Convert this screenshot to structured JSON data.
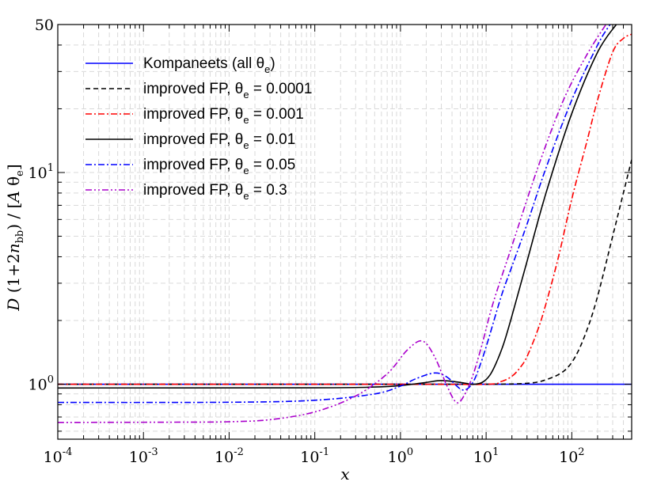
{
  "chart_data": {
    "type": "line",
    "xlabel": "x",
    "ylabel_parts": {
      "d": "D",
      "paren_open": " (1+2",
      "n": "n",
      "n_sub": "bb",
      "paren_close": ") / [",
      "a": "A",
      "theta": " θ",
      "theta_sub": "e",
      "bracket_close": "]"
    },
    "xscale": "log",
    "yscale": "log",
    "xlim": [
      0.0001,
      500
    ],
    "ylim": [
      0.55,
      50
    ],
    "grid": true,
    "legend_position": "upper-left",
    "x_ticks": [
      {
        "base": "10",
        "exp": "-4",
        "value": 0.0001
      },
      {
        "base": "10",
        "exp": "-3",
        "value": 0.001
      },
      {
        "base": "10",
        "exp": "-2",
        "value": 0.01
      },
      {
        "base": "10",
        "exp": "-1",
        "value": 0.1
      },
      {
        "base": "10",
        "exp": "0",
        "value": 1
      },
      {
        "base": "10",
        "exp": "1",
        "value": 10
      },
      {
        "base": "10",
        "exp": "2",
        "value": 100
      }
    ],
    "y_ticks": [
      {
        "base": "10",
        "exp": "0",
        "value": 1
      },
      {
        "base": "10",
        "exp": "1",
        "value": 10
      },
      {
        "base": "50",
        "exp": "",
        "value": 50
      }
    ],
    "series": [
      {
        "name_main": "Kompaneets (all θ",
        "name_sub": "e",
        "name_rest": ")",
        "color": "#0000ff",
        "dash": "",
        "points": [
          [
            0.0001,
            1.0
          ],
          [
            0.01,
            1.0
          ],
          [
            1,
            1.0
          ],
          [
            10,
            1.0
          ],
          [
            100,
            1.0
          ],
          [
            500,
            1.0
          ]
        ]
      },
      {
        "name_main": "improved FP, θ",
        "name_sub": "e",
        "name_rest": " = 0.0001",
        "color": "#000000",
        "dash": "6,4",
        "points": [
          [
            0.0001,
            1.0
          ],
          [
            1,
            1.0
          ],
          [
            10,
            1.0
          ],
          [
            30,
            1.01
          ],
          [
            50,
            1.05
          ],
          [
            80,
            1.15
          ],
          [
            110,
            1.35
          ],
          [
            150,
            1.8
          ],
          [
            200,
            2.6
          ],
          [
            300,
            5.0
          ],
          [
            400,
            8.0
          ],
          [
            500,
            11.5
          ]
        ]
      },
      {
        "name_main": "improved FP, θ",
        "name_sub": "e",
        "name_rest": " = 0.001",
        "color": "#ff0000",
        "dash": "8,3,2,3",
        "points": [
          [
            0.0001,
            1.0
          ],
          [
            1,
            1.0
          ],
          [
            10,
            1.0
          ],
          [
            15,
            1.03
          ],
          [
            20,
            1.09
          ],
          [
            25,
            1.2
          ],
          [
            30,
            1.35
          ],
          [
            40,
            1.8
          ],
          [
            50,
            2.4
          ],
          [
            70,
            4.0
          ],
          [
            100,
            7.5
          ],
          [
            150,
            14
          ],
          [
            200,
            22
          ],
          [
            300,
            37
          ],
          [
            400,
            43
          ],
          [
            500,
            45
          ]
        ]
      },
      {
        "name_main": "improved FP, θ",
        "name_sub": "e",
        "name_rest": " = 0.01",
        "color": "#000000",
        "dash": "",
        "points": [
          [
            0.0001,
            0.96
          ],
          [
            0.1,
            0.962
          ],
          [
            0.5,
            0.97
          ],
          [
            1,
            0.985
          ],
          [
            2,
            1.02
          ],
          [
            3,
            1.04
          ],
          [
            5,
            1.02
          ],
          [
            7,
            1.0
          ],
          [
            9,
            1.02
          ],
          [
            11,
            1.1
          ],
          [
            13,
            1.25
          ],
          [
            16,
            1.55
          ],
          [
            20,
            2.1
          ],
          [
            30,
            3.8
          ],
          [
            50,
            8.0
          ],
          [
            100,
            19
          ],
          [
            200,
            37
          ],
          [
            330,
            50
          ]
        ]
      },
      {
        "name_main": "improved FP, θ",
        "name_sub": "e",
        "name_rest": " = 0.05",
        "color": "#0000ff",
        "dash": "8,3,2,3",
        "points": [
          [
            0.0001,
            0.82
          ],
          [
            0.01,
            0.822
          ],
          [
            0.1,
            0.84
          ],
          [
            0.5,
            0.9
          ],
          [
            1,
            0.98
          ],
          [
            1.5,
            1.06
          ],
          [
            2.5,
            1.13
          ],
          [
            3.5,
            1.08
          ],
          [
            5,
            0.95
          ],
          [
            6,
            0.95
          ],
          [
            7,
            1.02
          ],
          [
            8,
            1.15
          ],
          [
            10,
            1.5
          ],
          [
            15,
            2.6
          ],
          [
            20,
            3.6
          ],
          [
            30,
            5.7
          ],
          [
            50,
            10.5
          ],
          [
            100,
            22
          ],
          [
            200,
            40
          ],
          [
            280,
            50
          ]
        ]
      },
      {
        "name_main": "improved FP, θ",
        "name_sub": "e",
        "name_rest": " = 0.3",
        "color": "#aa00cc",
        "dash": "8,3,2,3,2,3",
        "points": [
          [
            0.0001,
            0.66
          ],
          [
            0.003,
            0.662
          ],
          [
            0.01,
            0.665
          ],
          [
            0.03,
            0.68
          ],
          [
            0.1,
            0.74
          ],
          [
            0.3,
            0.88
          ],
          [
            0.7,
            1.12
          ],
          [
            1.2,
            1.45
          ],
          [
            1.8,
            1.6
          ],
          [
            2.5,
            1.35
          ],
          [
            3.5,
            0.98
          ],
          [
            4.5,
            0.82
          ],
          [
            5.5,
            0.88
          ],
          [
            7,
            1.1
          ],
          [
            9,
            1.55
          ],
          [
            12,
            2.4
          ],
          [
            20,
            4.5
          ],
          [
            40,
            10.5
          ],
          [
            80,
            22
          ],
          [
            150,
            36
          ],
          [
            250,
            50
          ]
        ]
      }
    ]
  }
}
